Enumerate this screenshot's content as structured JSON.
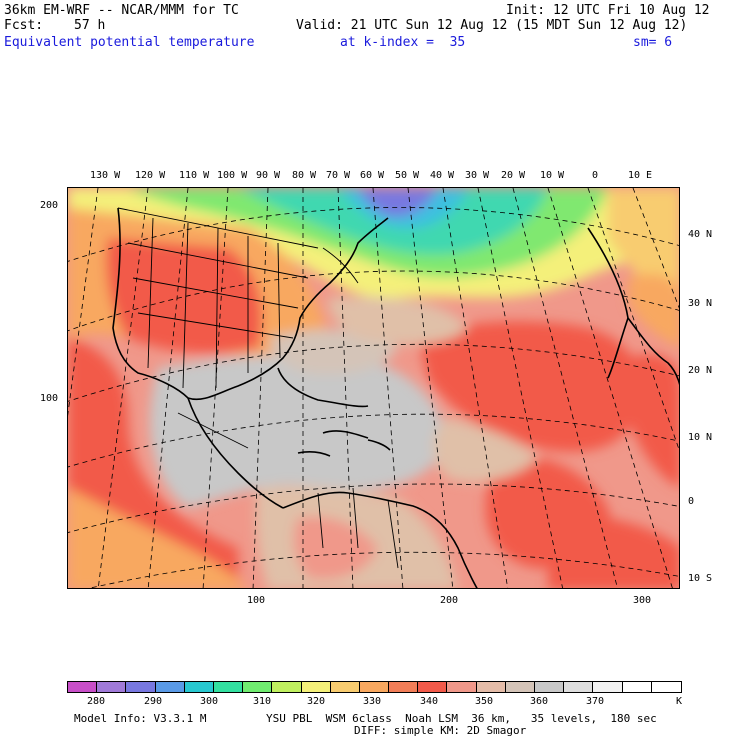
{
  "header": {
    "model": "36km EM-WRF -- NCAR/MMM for TC",
    "init": "Init: 12 UTC Fri 10 Aug 12",
    "fcst_label": "Fcst:",
    "fcst_value": "57 h",
    "valid": "Valid: 21 UTC Sun 12 Aug 12 (15 MDT Sun 12 Aug 12)",
    "field": "Equivalent potential temperature",
    "level": "at k-index =  35",
    "smooth": "sm= 6"
  },
  "lon_labels": [
    "130 W",
    "120 W",
    "110 W",
    "100 W",
    "90 W",
    "80 W",
    "70 W",
    "60 W",
    "50 W",
    "40 W",
    "30 W",
    "20 W",
    "10 W",
    "0",
    "10 E"
  ],
  "lat_labels": [
    "40 N",
    "30 N",
    "20 N",
    "10 N",
    "0",
    "10 S"
  ],
  "grid_labels": {
    "left": [
      "200",
      "100"
    ],
    "bottom": [
      "100",
      "200",
      "300"
    ]
  },
  "colorbar": {
    "unit": "K",
    "ticks": [
      "280",
      "290",
      "300",
      "310",
      "320",
      "330",
      "340",
      "350",
      "360",
      "370"
    ],
    "colors": [
      "#c84fc8",
      "#a07ad8",
      "#7878e0",
      "#5a9ae6",
      "#28c8d0",
      "#33e0a0",
      "#70ec70",
      "#c0f060",
      "#f4f07a",
      "#f8cc70",
      "#f8a860",
      "#f27e58",
      "#f25a4a",
      "#f0988a",
      "#e4bca8",
      "#d4c4b8",
      "#c8c8c8",
      "#dedede",
      "#f2f2f2",
      "#ffffff",
      "#ffffff"
    ]
  },
  "footer": {
    "line1_left": "Model Info: V3.3.1 M",
    "line1_right": "YSU PBL  WSM 6class  Noah LSM  36 km,   35 levels,  180 sec",
    "line2": "DIFF: simple KM: 2D Smagor"
  },
  "map_colors": {
    "cold": "#3cc0e0",
    "cyan": "#40d8b0",
    "green": "#80e870",
    "yellow": "#f4f07a",
    "orange": "#f8a860",
    "red": "#f25a4a",
    "salmon": "#f0988a",
    "tan": "#e0c0a8",
    "gray": "#c8c8c8",
    "purple": "#7878e0"
  }
}
